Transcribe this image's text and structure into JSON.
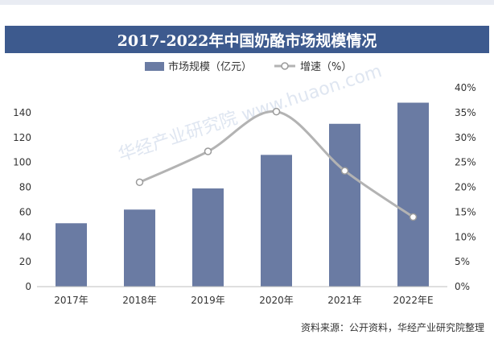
{
  "chart_data": {
    "type": "bar",
    "title": "2017-2022年中国奶酪市场规模情况",
    "categories": [
      "2017年",
      "2018年",
      "2019年",
      "2020年",
      "2021年",
      "2022年E"
    ],
    "series": [
      {
        "name": "市场规模（亿元）",
        "type": "bar",
        "axis": "left",
        "values": [
          51,
          62,
          79,
          106,
          131,
          148
        ]
      },
      {
        "name": "增速（%）",
        "type": "line",
        "axis": "right",
        "values": [
          null,
          21,
          27.2,
          35.2,
          23.3,
          14
        ]
      }
    ],
    "ylim_left": [
      0,
      160
    ],
    "yticks_left": [
      "0",
      "20",
      "40",
      "60",
      "80",
      "100",
      "120",
      "140"
    ],
    "ylim_right": [
      0,
      40
    ],
    "yticks_right": [
      "0%",
      "5%",
      "10%",
      "15%",
      "20%",
      "25%",
      "30%",
      "35%",
      "40%"
    ],
    "colors": {
      "bar": "#6a7ba3",
      "line": "#b3b3b3",
      "marker_fill": "#ffffff",
      "title_bg": "#3d5a8e"
    },
    "grid": false,
    "legend_position": "top-center"
  },
  "source_text": "资料来源：公开资料，华经产业研究院整理",
  "watermark": "华经产业研究院 www.huaon.com"
}
